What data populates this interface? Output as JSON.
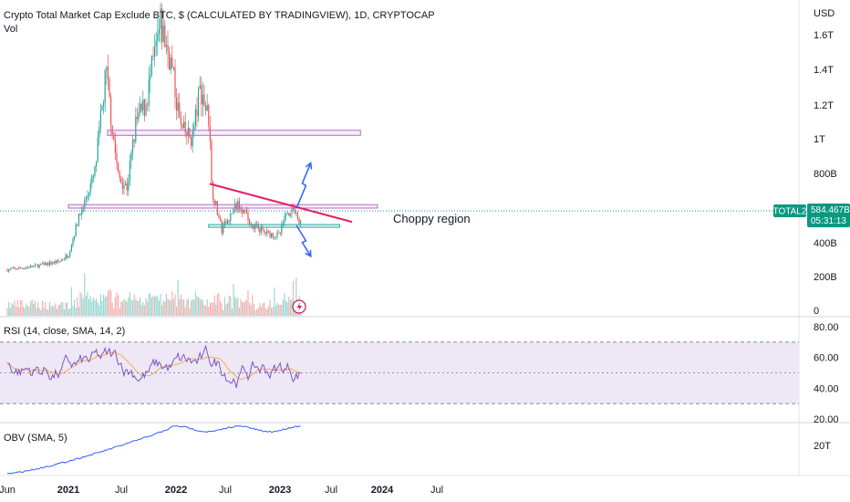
{
  "chart_data": [
    {
      "type": "candlestick",
      "title": "Crypto Total Market Cap Exclude BTC, $ (CALCULATED BY TRADINGVIEW), 1D, CRYPTOCAP",
      "volume_label": "Vol",
      "currency": "USD",
      "symbol": "TOTAL2",
      "last_price": "584.467B",
      "countdown": "05:31:13",
      "y_ticks": [
        {
          "label": "1.6T",
          "value": 1600
        },
        {
          "label": "1.4T",
          "value": 1400
        },
        {
          "label": "1.2T",
          "value": 1200
        },
        {
          "label": "1T",
          "value": 1000
        },
        {
          "label": "800B",
          "value": 800
        },
        {
          "label": "400B",
          "value": 400
        },
        {
          "label": "200B",
          "value": 200
        },
        {
          "label": "0",
          "value": 0
        }
      ],
      "x_ticks": [
        "Jun",
        "2021",
        "Jul",
        "2022",
        "Jul",
        "2023",
        "Jul",
        "2024",
        "Jul"
      ],
      "x_tick_bold": [
        false,
        true,
        false,
        true,
        false,
        true,
        false,
        true,
        false
      ],
      "x_tick_dates": [
        "2020-06-01",
        "2021-01-01",
        "2021-07-01",
        "2022-01-01",
        "2022-07-01",
        "2023-01-01",
        "2023-07-01",
        "2024-01-01",
        "2024-07-01"
      ],
      "price_path": [
        [
          "2020-06-01",
          240
        ],
        [
          "2020-09-01",
          260
        ],
        [
          "2020-12-01",
          290
        ],
        [
          "2021-01-01",
          330
        ],
        [
          "2021-02-01",
          520
        ],
        [
          "2021-04-01",
          800
        ],
        [
          "2021-05-10",
          1380
        ],
        [
          "2021-06-20",
          780
        ],
        [
          "2021-07-20",
          720
        ],
        [
          "2021-08-20",
          1100
        ],
        [
          "2021-09-20",
          1200
        ],
        [
          "2021-11-10",
          1650
        ],
        [
          "2021-12-10",
          1480
        ],
        [
          "2022-01-20",
          1050
        ],
        [
          "2022-03-01",
          1000
        ],
        [
          "2022-04-01",
          1300
        ],
        [
          "2022-05-05",
          1100
        ],
        [
          "2022-05-12",
          720
        ],
        [
          "2022-06-18",
          470
        ],
        [
          "2022-08-15",
          640
        ],
        [
          "2022-09-20",
          520
        ],
        [
          "2022-11-08",
          460
        ],
        [
          "2022-12-30",
          440
        ],
        [
          "2023-01-20",
          560
        ],
        [
          "2023-02-16",
          600
        ],
        [
          "2023-03-10",
          510
        ],
        [
          "2023-03-20",
          584
        ]
      ],
      "annotations": {
        "resistance_box_upper": {
          "from": "2021-05-15",
          "to": "2023-10-15",
          "low": 1020,
          "high": 1050
        },
        "resistance_box_mid": {
          "from": "2021-01-01",
          "to": "2023-12-15",
          "low": 600,
          "high": 620
        },
        "support_box": {
          "from": "2022-05-01",
          "to": "2023-08-01",
          "low": 490,
          "high": 505
        },
        "trendline": {
          "from": [
            "2022-05-05",
            740
          ],
          "to": [
            "2023-09-15",
            520
          ]
        },
        "arrow_up": {
          "from": [
            "2023-03-20",
            600
          ],
          "to": [
            "2023-04-20",
            860
          ]
        },
        "arrow_down": {
          "from": [
            "2023-03-20",
            500
          ],
          "to": [
            "2023-04-20",
            320
          ]
        },
        "label_text": "Choppy region"
      }
    },
    {
      "type": "line",
      "title": "RSI (14, close, SMA, 14, 2)",
      "y_ticks": [
        {
          "label": "80.00",
          "value": 80
        },
        {
          "label": "60.00",
          "value": 60
        },
        {
          "label": "40.00",
          "value": 40
        },
        {
          "label": "20.00",
          "value": 20
        }
      ],
      "levels": {
        "upper": 70,
        "middle": 50,
        "lower": 30
      },
      "ylim": [
        20,
        80
      ]
    },
    {
      "type": "line",
      "title": "OBV (SMA, 5)",
      "y_ticks": [
        {
          "label": "20T",
          "value": 20
        }
      ]
    }
  ],
  "colors": {
    "up": "#26a69a",
    "down": "#ef5350",
    "rsi_line": "#7e57c2",
    "rsi_ma": "#f5a623",
    "rsi_band": "#ede7f6",
    "obv": "#2962ff",
    "box_purple": "#ba68c8",
    "box_teal": "#26a69a",
    "trendline": "#e91e63",
    "arrow": "#2962ff",
    "price_tag": "#089981",
    "axis_text": "#131722"
  }
}
